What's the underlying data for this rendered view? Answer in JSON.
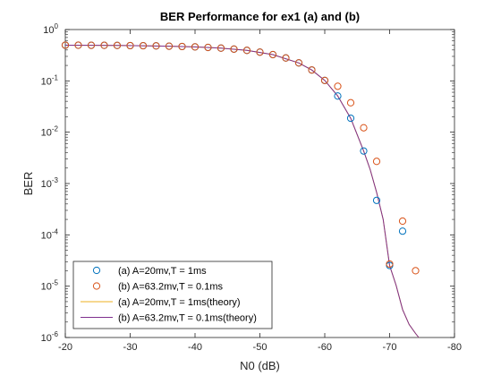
{
  "chart_data": {
    "type": "line",
    "title": "BER Performance for ex1 (a) and (b)",
    "xlabel": "N0 (dB)",
    "ylabel": "BER",
    "xlim": [
      -20,
      -80
    ],
    "ylim": [
      1e-06,
      1
    ],
    "yscale": "log",
    "x_reversed": true,
    "grid": false,
    "legend_position": "bottom-left",
    "x_ticks": [
      "-20",
      "-30",
      "-40",
      "-50",
      "-60",
      "-70",
      "-80"
    ],
    "y_ticks": [
      {
        "base": "10",
        "exp": "0",
        "value": 1
      },
      {
        "base": "10",
        "exp": "-1",
        "value": 0.1
      },
      {
        "base": "10",
        "exp": "-2",
        "value": 0.01
      },
      {
        "base": "10",
        "exp": "-3",
        "value": 0.001
      },
      {
        "base": "10",
        "exp": "-4",
        "value": 0.0001
      },
      {
        "base": "10",
        "exp": "-5",
        "value": 1e-05
      },
      {
        "base": "10",
        "exp": "-6",
        "value": 1e-06
      }
    ],
    "series": [
      {
        "name": "(a) A=20mv,T = 1ms",
        "kind": "markers",
        "color": "#0072BD",
        "x": [
          -20,
          -22,
          -24,
          -26,
          -28,
          -30,
          -32,
          -34,
          -36,
          -38,
          -40,
          -42,
          -44,
          -46,
          -48,
          -50,
          -52,
          -54,
          -56,
          -58,
          -60,
          -62,
          -64,
          -66,
          -68,
          -70,
          -72
        ],
        "y": [
          0.496,
          0.495,
          0.493,
          0.492,
          0.49,
          0.487,
          0.484,
          0.48,
          0.474,
          0.467,
          0.459,
          0.448,
          0.434,
          0.416,
          0.393,
          0.363,
          0.325,
          0.279,
          0.224,
          0.163,
          0.102,
          0.0507,
          0.0187,
          0.0043,
          0.00047,
          2.53e-05,
          0.000118
        ]
      },
      {
        "name": "(b) A=63.2mv,T = 0.1ms",
        "kind": "markers",
        "color": "#D95319",
        "x": [
          -20,
          -22,
          -24,
          -26,
          -28,
          -30,
          -32,
          -34,
          -36,
          -38,
          -40,
          -42,
          -44,
          -46,
          -48,
          -50,
          -52,
          -54,
          -56,
          -58,
          -60,
          -62,
          -64,
          -66,
          -68,
          -70,
          -72,
          -74
        ],
        "y": [
          0.496,
          0.495,
          0.493,
          0.492,
          0.49,
          0.487,
          0.484,
          0.48,
          0.474,
          0.467,
          0.459,
          0.448,
          0.434,
          0.416,
          0.393,
          0.363,
          0.325,
          0.279,
          0.224,
          0.163,
          0.102,
          0.0785,
          0.0375,
          0.0122,
          0.0027,
          2.7e-05,
          0.000185,
          2e-05
        ]
      },
      {
        "name": "(a) A=20mv,T = 1ms(theory)",
        "kind": "line",
        "color": "#EDB120",
        "x": [
          -20,
          -24,
          -28,
          -32,
          -36,
          -40,
          -44,
          -48,
          -52,
          -56,
          -58,
          -60,
          -62,
          -64,
          -66,
          -67,
          -68,
          -69,
          -70,
          -71,
          -72,
          -73,
          -74,
          -74.5
        ],
        "y": [
          0.496,
          0.493,
          0.49,
          0.484,
          0.474,
          0.459,
          0.434,
          0.393,
          0.325,
          0.224,
          0.163,
          0.102,
          0.0507,
          0.0187,
          0.0043,
          0.00186,
          0.00067,
          0.0002,
          2.53e-05,
          1.03e-05,
          3.5e-06,
          1.8e-06,
          1.2e-06,
          1e-06
        ]
      },
      {
        "name": "(b) A=63.2mv,T = 0.1ms(theory)",
        "kind": "line",
        "color": "#7E2F8E",
        "x": [
          -20,
          -24,
          -28,
          -32,
          -36,
          -40,
          -44,
          -48,
          -52,
          -56,
          -58,
          -60,
          -62,
          -64,
          -66,
          -67,
          -68,
          -69,
          -70,
          -71,
          -72,
          -73,
          -74,
          -74.5
        ],
        "y": [
          0.496,
          0.493,
          0.49,
          0.484,
          0.474,
          0.459,
          0.434,
          0.393,
          0.325,
          0.224,
          0.163,
          0.102,
          0.0507,
          0.0187,
          0.0043,
          0.00186,
          0.00067,
          0.0002,
          2.53e-05,
          1.03e-05,
          3.5e-06,
          1.8e-06,
          1.2e-06,
          1e-06
        ]
      }
    ]
  }
}
